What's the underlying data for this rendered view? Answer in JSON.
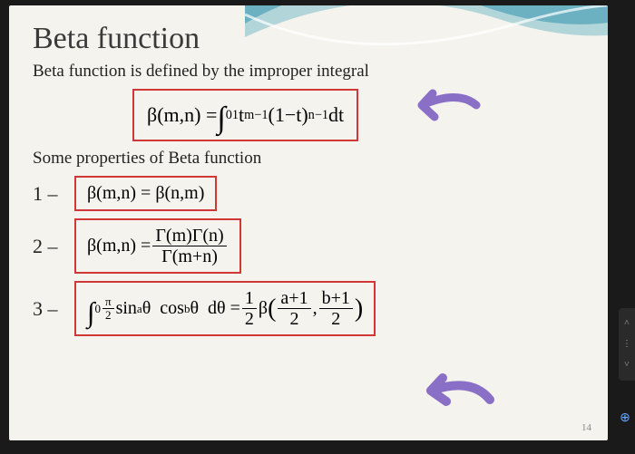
{
  "slide": {
    "title": "Beta function",
    "description": "Beta function is defined by the improper integral",
    "main_formula_html": "β(m,n) = <span class=\"int\">∫</span><sub>0</sub><sup>1</sup> t<sup>m−1</sup> (1−t)<sup>n−1</sup> dt",
    "properties_heading": "Some properties of Beta function",
    "properties": [
      {
        "num": "1 –",
        "html": "β(m,n) = β(n,m)"
      },
      {
        "num": "2 –",
        "html": "β(m,n) = <span class=\"frac\"><span class=\"top\">Γ(m)Γ(n)</span><span class=\"bot\">Γ(m+n)</span></span>"
      },
      {
        "num": "3 –",
        "html": "<span class=\"int\">∫</span><sub>0</sub><sup><span class=\"frac\"><span class=\"top\">π</span><span class=\"bot\">2</span></span></sup> sin<sup>a</sup>θ&nbsp; cos<sup>b</sup>θ&nbsp; dθ = <span class=\"frac\"><span class=\"top\">1</span><span class=\"bot\">2</span></span> β<span style=\"font-size:1.4em\">(</span><span class=\"frac\"><span class=\"top\">a+1</span><span class=\"bot\">2</span></span> , <span class=\"frac\"><span class=\"top\">b+1</span><span class=\"bot\">2</span></span><span style=\"font-size:1.4em\">)</span>"
      }
    ],
    "slide_number": "14",
    "box_border_color": "#d03838",
    "annotation_color": "#8a6fc7",
    "wave_colors": [
      "#2a8aa8",
      "#6fb8c8",
      "#ffffff"
    ]
  },
  "icons": {
    "zoom": "⊕"
  }
}
